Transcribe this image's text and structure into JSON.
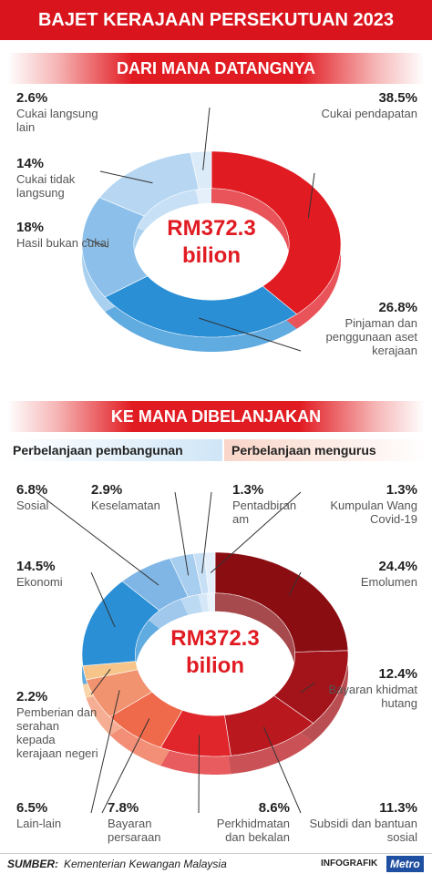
{
  "title": "BAJET KERAJAAN PERSEKUTUAN 2023",
  "chart_data": [
    {
      "type": "pie",
      "donut": true,
      "title": "DARI MANA DATANGNYA",
      "center_label": "RM372.3",
      "center_sublabel": "bilion",
      "categories": [
        "Cukai pendapatan",
        "Pinjaman dan penggunaan aset kerajaan",
        "Hasil bukan cukai",
        "Cukai tidak langsung",
        "Cukai langsung lain"
      ],
      "values": [
        38.5,
        26.8,
        18,
        14,
        2.6
      ],
      "value_labels": [
        "38.5%",
        "26.8%",
        "18%",
        "14%",
        "2.6%"
      ],
      "colors": [
        "#e01b22",
        "#2b8fd6",
        "#8cc0ea",
        "#b6d6f2",
        "#dcebf8"
      ]
    },
    {
      "type": "pie",
      "donut": true,
      "title": "KE MANA DIBELANJAKAN",
      "center_label": "RM372.3",
      "center_sublabel": "bilion",
      "legend": [
        {
          "name": "Perbelanjaan pembangunan",
          "color": "#cfe6f7"
        },
        {
          "name": "Perbelanjaan mengurus",
          "color": "#f9d5c8"
        }
      ],
      "categories": [
        "Emolumen",
        "Bayaran khidmat hutang",
        "Subsidi dan bantuan sosial",
        "Perkhidmatan dan bekalan",
        "Bayaran persaraan",
        "Lain-lain",
        "Pemberian dan serahan kepada kerajaan negeri",
        "Ekonomi",
        "Sosial",
        "Keselamatan",
        "Pentadbiran am",
        "Kumpulan Wang Covid-19"
      ],
      "values": [
        24.4,
        12.4,
        11.3,
        8.6,
        7.8,
        6.5,
        2.2,
        14.5,
        6.8,
        2.9,
        1.3,
        1.3
      ],
      "value_labels": [
        "24.4%",
        "12.4%",
        "11.3%",
        "8.6%",
        "7.8%",
        "6.5%",
        "2.2%",
        "14.5%",
        "6.8%",
        "2.9%",
        "1.3%",
        "1.3%"
      ],
      "colors": [
        "#8a0d12",
        "#a3141a",
        "#b8181e",
        "#e0262a",
        "#ef6a4a",
        "#f2936f",
        "#f7c58a",
        "#2b8fd6",
        "#7fb6e6",
        "#a7cdef",
        "#c8e0f5",
        "#e3effa"
      ]
    }
  ],
  "footer": {
    "source_label": "SUMBER:",
    "source": "Kementerian Kewangan Malaysia",
    "tag": "INFOGRAFIK",
    "brand": "Metro"
  }
}
